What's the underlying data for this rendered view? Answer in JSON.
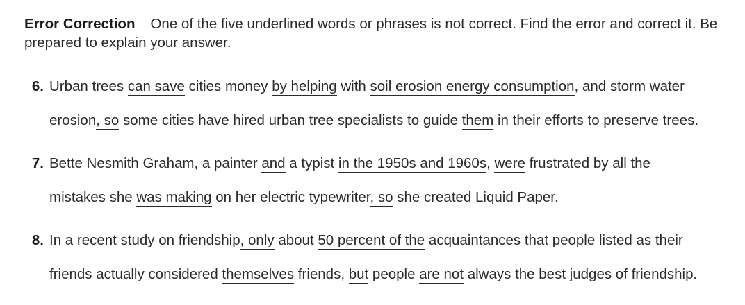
{
  "intro": {
    "heading": "Error Correction",
    "text": "One of the five underlined words or phrases is not correct. Find the error and correct it. Be prepared to explain your answer."
  },
  "items": [
    {
      "number": "6.",
      "line1": [
        {
          "t": "Urban trees ",
          "u": false
        },
        {
          "t": "can save",
          "u": true
        },
        {
          "t": " cities money ",
          "u": false
        },
        {
          "t": "by helping",
          "u": true
        },
        {
          "t": " with ",
          "u": false
        },
        {
          "t": "soil erosion energy consumption",
          "u": true
        },
        {
          "t": ", and storm water",
          "u": false
        }
      ],
      "line2": [
        {
          "t": "erosion",
          "u": false
        },
        {
          "t": ", so",
          "u": true
        },
        {
          "t": " some cities have hired urban tree specialists to guide ",
          "u": false
        },
        {
          "t": "them",
          "u": true
        },
        {
          "t": " in their efforts to preserve trees.",
          "u": false
        }
      ]
    },
    {
      "number": "7.",
      "line1": [
        {
          "t": "Bette Nesmith Graham, a painter ",
          "u": false
        },
        {
          "t": "and",
          "u": true
        },
        {
          "t": " a typist ",
          "u": false
        },
        {
          "t": "in the 1950s and 1960s",
          "u": true
        },
        {
          "t": ", ",
          "u": false
        },
        {
          "t": "were",
          "u": true
        },
        {
          "t": " frustrated by all the",
          "u": false
        }
      ],
      "line2": [
        {
          "t": "mistakes she ",
          "u": false
        },
        {
          "t": "was making",
          "u": true
        },
        {
          "t": " on her electric typewriter",
          "u": false
        },
        {
          "t": ", so",
          "u": true
        },
        {
          "t": " she created Liquid Paper.",
          "u": false
        }
      ]
    },
    {
      "number": "8.",
      "line1": [
        {
          "t": "In a recent study on friendship",
          "u": false
        },
        {
          "t": ", only",
          "u": true
        },
        {
          "t": " about ",
          "u": false
        },
        {
          "t": "50 percent of the",
          "u": true
        },
        {
          "t": " acquaintances that people listed as their",
          "u": false
        }
      ],
      "line2": [
        {
          "t": "friends actually considered ",
          "u": false
        },
        {
          "t": "themselves",
          "u": true
        },
        {
          "t": " friends, ",
          "u": false
        },
        {
          "t": "but",
          "u": true
        },
        {
          "t": " people ",
          "u": false
        },
        {
          "t": "are not",
          "u": true
        },
        {
          "t": " always the best judges of friendship.",
          "u": false
        }
      ]
    }
  ]
}
